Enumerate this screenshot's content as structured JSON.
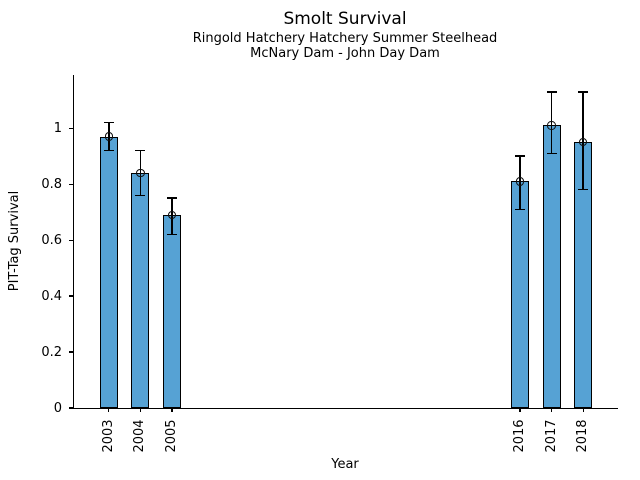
{
  "chart_data": {
    "type": "bar",
    "title": "Smolt Survival",
    "subtitle1": "Ringold Hatchery Hatchery Summer Steelhead",
    "subtitle2": "McNary Dam - John Day Dam",
    "xlabel": "Year",
    "ylabel": "PIT-Tag Survival",
    "categories": [
      2003,
      2004,
      2005,
      2016,
      2017,
      2018
    ],
    "values": [
      0.97,
      0.84,
      0.69,
      0.81,
      1.01,
      0.95
    ],
    "error_low": [
      0.92,
      0.76,
      0.62,
      0.71,
      0.91,
      0.78
    ],
    "error_high": [
      1.02,
      0.92,
      0.75,
      0.9,
      1.13,
      1.13
    ],
    "ytick_values": [
      0,
      0.2,
      0.4,
      0.6,
      0.8,
      1
    ],
    "ytick_labels": [
      "0",
      "0.2",
      "0.4",
      "0.6",
      "0.8",
      "1"
    ],
    "xlim": [
      2001.9,
      2019.1
    ],
    "ylim": [
      0,
      1.19
    ],
    "grid": false,
    "legend": "none",
    "marker": "open-circle",
    "colors": {
      "bar_fill": "#56A2D4",
      "bar_edge": "#000000",
      "error_bar": "#000000",
      "text": "#000000",
      "background": "#FFFFFF"
    }
  }
}
